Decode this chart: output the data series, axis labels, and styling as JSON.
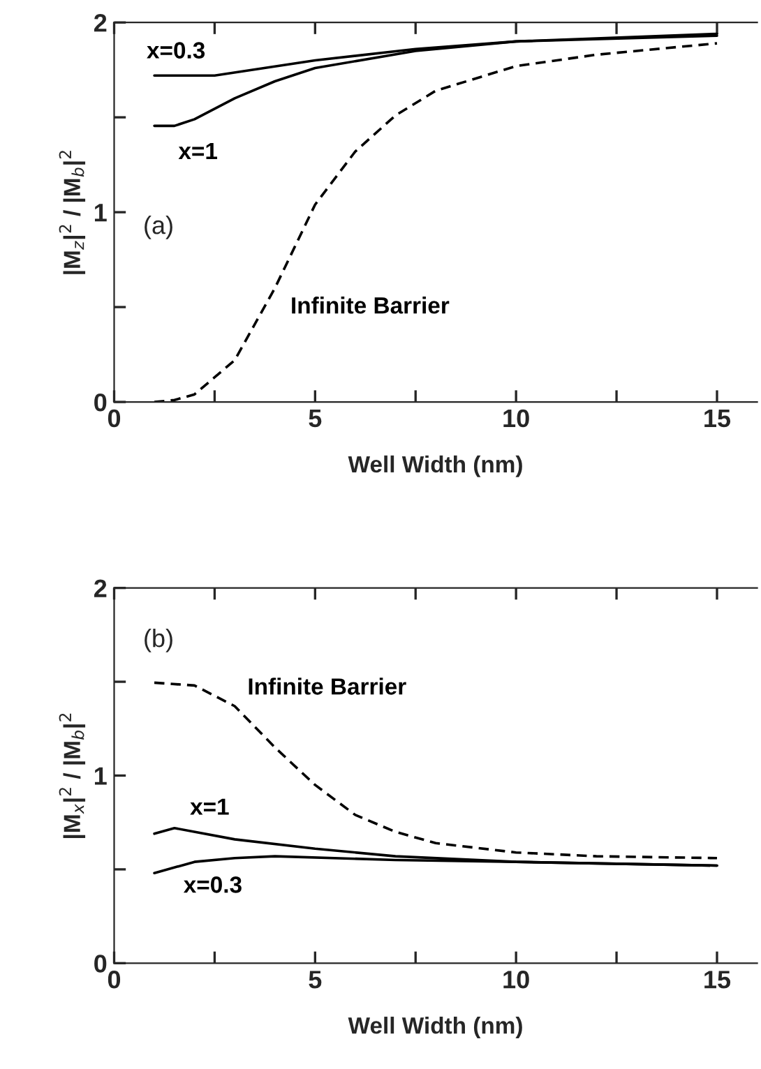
{
  "chart_data": [
    {
      "type": "line",
      "xlabel": "Well Width (nm)",
      "ylabel": "|M$_{z}$|$^{2}$ / |M$_{b}$|$^{2}$",
      "xlim": [
        0,
        16
      ],
      "xticks": [
        0,
        5,
        10,
        15
      ],
      "ylim": [
        0,
        2
      ],
      "yticks": [
        0,
        1,
        2
      ],
      "grid": false,
      "legend": false,
      "series": [
        {
          "name": "x=0.3",
          "color": "#000000",
          "line_style": "solid",
          "x": [
            1,
            2.5,
            5,
            7.5,
            10,
            15
          ],
          "values": [
            1.72,
            1.72,
            1.8,
            1.86,
            1.9,
            1.94
          ]
        },
        {
          "name": "x=1",
          "color": "#000000",
          "line_style": "solid",
          "x": [
            1,
            1.5,
            2,
            3,
            4,
            5,
            7.5,
            10,
            15
          ],
          "values": [
            1.455,
            1.455,
            1.49,
            1.6,
            1.69,
            1.76,
            1.85,
            1.9,
            1.93
          ]
        },
        {
          "name": "Infinite Barrier",
          "color": "#000000",
          "line_style": "dashed",
          "x": [
            1,
            1.5,
            2,
            3,
            4,
            5,
            6,
            7,
            8,
            10,
            12,
            15
          ],
          "values": [
            0.0,
            0.01,
            0.04,
            0.22,
            0.6,
            1.04,
            1.32,
            1.51,
            1.64,
            1.77,
            1.83,
            1.89
          ]
        }
      ],
      "annotations": [
        "(a)"
      ]
    },
    {
      "type": "line",
      "xlabel": "Well Width (nm)",
      "ylabel": "|M$_{x}$|$^{2}$ / |M$_{b}$|$^{2}$",
      "xlim": [
        0,
        16
      ],
      "xticks": [
        0,
        5,
        10,
        15
      ],
      "ylim": [
        0,
        2
      ],
      "yticks": [
        0,
        1,
        2
      ],
      "grid": false,
      "legend": false,
      "series": [
        {
          "name": "Infinite Barrier",
          "color": "#000000",
          "line_style": "dashed",
          "x": [
            1,
            2,
            3,
            4,
            5,
            6,
            7,
            8,
            10,
            12,
            15
          ],
          "values": [
            1.495,
            1.48,
            1.37,
            1.15,
            0.95,
            0.79,
            0.7,
            0.64,
            0.59,
            0.57,
            0.56
          ]
        },
        {
          "name": "x=1",
          "color": "#000000",
          "line_style": "solid",
          "x": [
            1,
            1.5,
            3,
            5,
            7,
            10,
            15
          ],
          "values": [
            0.69,
            0.72,
            0.66,
            0.61,
            0.57,
            0.54,
            0.52
          ]
        },
        {
          "name": "x=0.3",
          "color": "#000000",
          "line_style": "solid",
          "x": [
            1,
            2,
            3,
            4,
            7,
            10,
            15
          ],
          "values": [
            0.48,
            0.54,
            0.56,
            0.57,
            0.55,
            0.54,
            0.52
          ]
        }
      ],
      "annotations": [
        "(b)"
      ]
    }
  ]
}
